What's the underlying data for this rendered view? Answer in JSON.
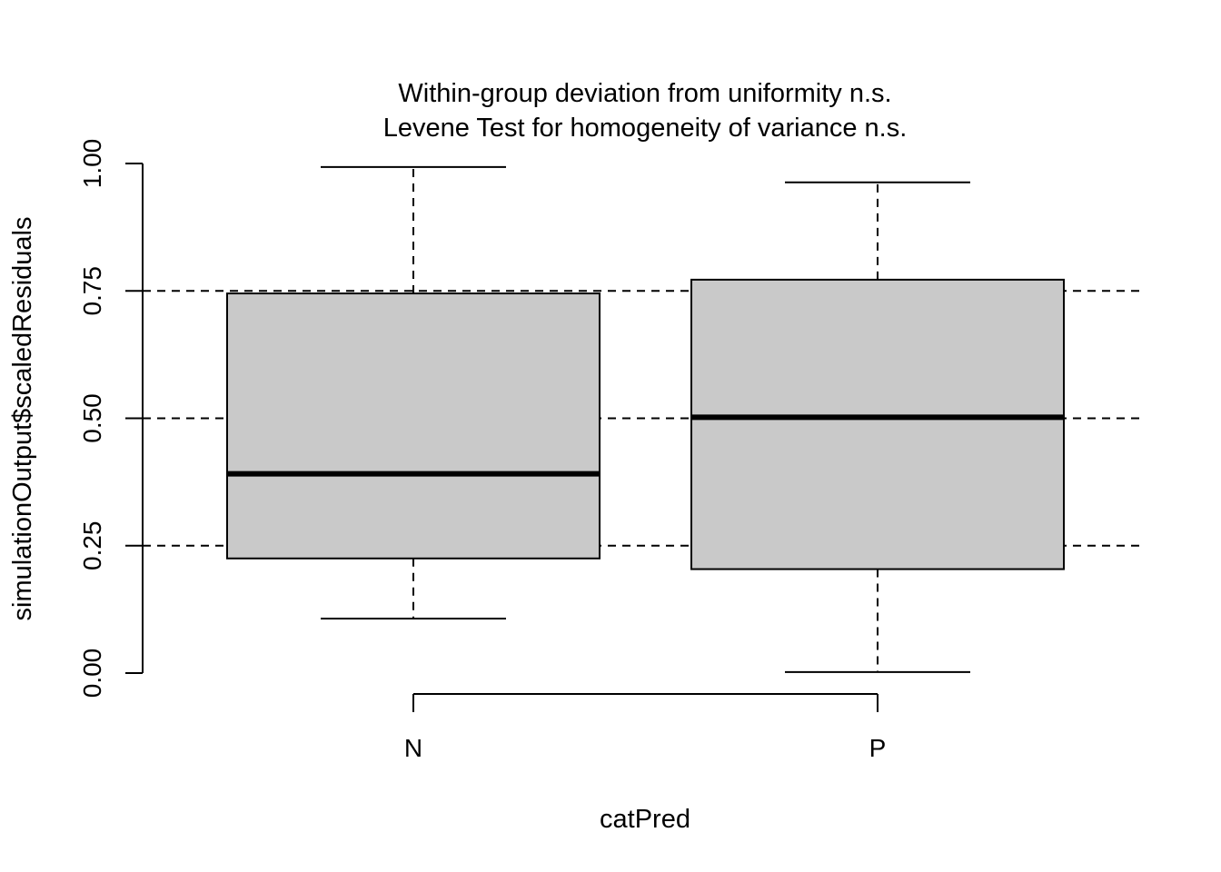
{
  "chart_data": {
    "type": "box",
    "title": "Within-group deviation from uniformity n.s.",
    "subtitle": "Levene Test for homogeneity of variance n.s.",
    "xlabel": "catPred",
    "ylabel": "simulationOutput$scaledResiduals",
    "ylim": [
      0,
      1
    ],
    "y_ticks": [
      "0.00",
      "0.25",
      "0.50",
      "0.75",
      "1.00"
    ],
    "reference_lines": [
      0.25,
      0.5,
      0.75
    ],
    "categories": [
      "N",
      "P"
    ],
    "boxes": [
      {
        "category": "N",
        "whisker_low": 0.107,
        "q1": 0.225,
        "median": 0.391,
        "q3": 0.745,
        "whisker_high": 0.993
      },
      {
        "category": "P",
        "whisker_low": 0.002,
        "q1": 0.204,
        "median": 0.502,
        "q3": 0.772,
        "whisker_high": 0.963
      }
    ],
    "colors": {
      "box_fill": "#c9c9c9",
      "stroke": "#000000"
    },
    "grid": false
  }
}
